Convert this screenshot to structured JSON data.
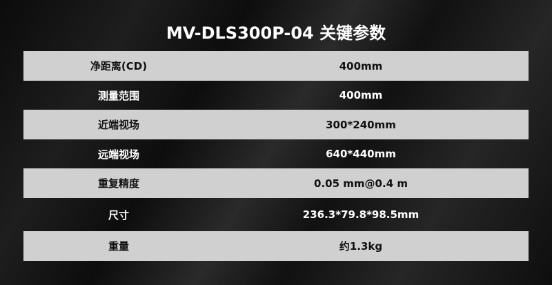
{
  "title": "MV-DLS300P-04 关键参数",
  "rows": [
    {
      "label": "净距离(CD)",
      "value": "400mm"
    },
    {
      "label": "测量范围",
      "value": "400mm"
    },
    {
      "label": "近端视场",
      "value": "300*240mm"
    },
    {
      "label": "远端视场",
      "value": "640*440mm"
    },
    {
      "label": "重复精度",
      "value": "0.05 mm@0.4 m"
    },
    {
      "label": "尺寸",
      "value": "236.3*79.8*98.5mm"
    },
    {
      "label": "重量",
      "value": "约1.3kg"
    }
  ]
}
